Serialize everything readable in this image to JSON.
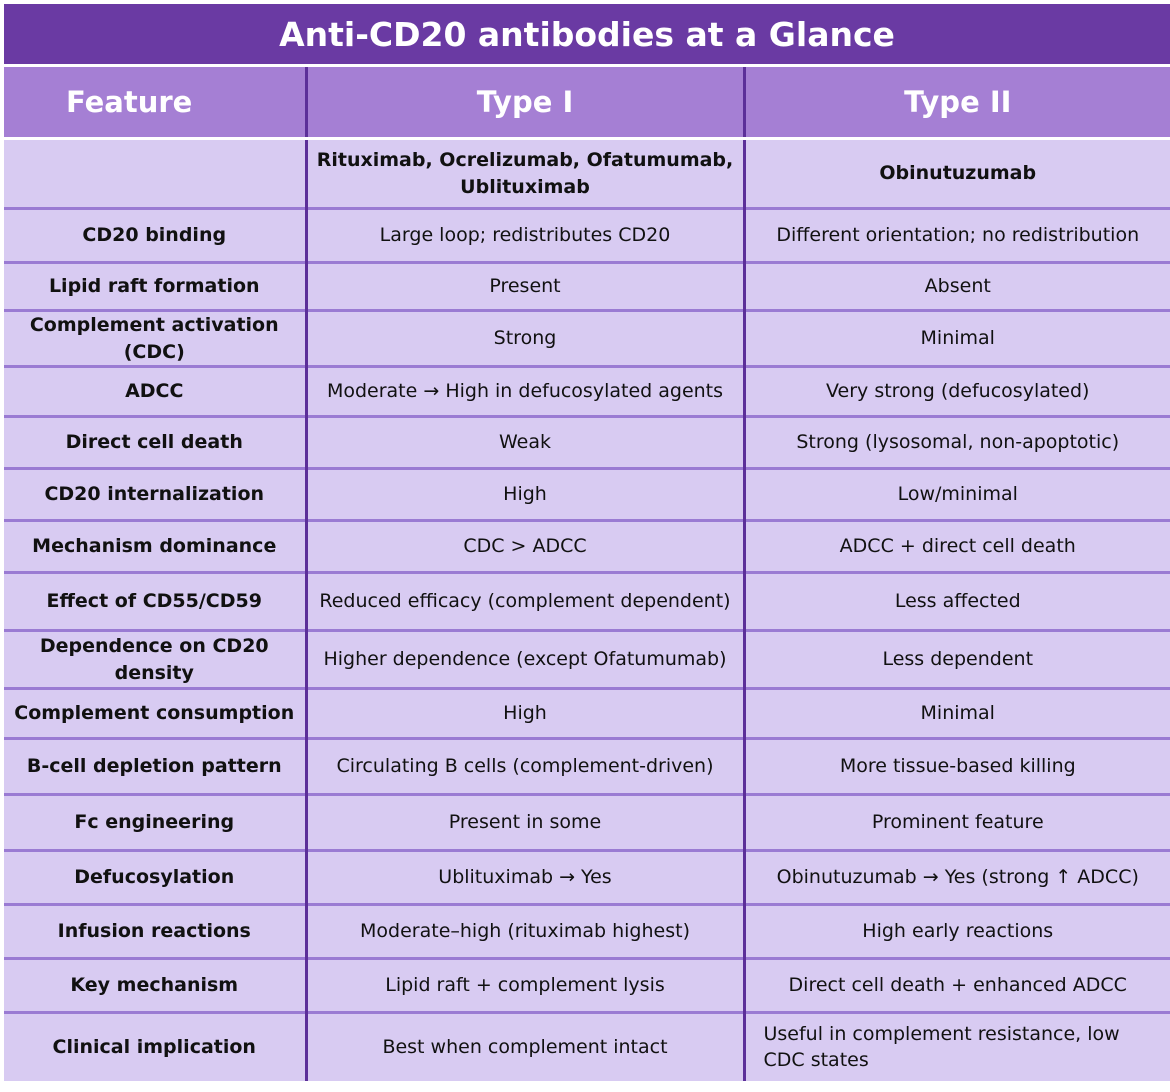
{
  "title": "Anti-CD20 antibodies at a Glance",
  "headers": [
    "Feature",
    "Type I",
    "Type  II"
  ],
  "colors": {
    "title_bg": "#6a3aa3",
    "header_bg": "#a57fd4",
    "row_bg": "#d8cbf2",
    "divider": "#5c2f99"
  },
  "rows": [
    {
      "feature": "",
      "type1": "Rituximab, Ocrelizumab, Ofatumumab, Ublituximab",
      "type2": "Obinutuzumab"
    },
    {
      "feature": "CD20 binding",
      "type1": "Large loop; redistributes CD20",
      "type2": "Different orientation; no redistribution"
    },
    {
      "feature": "Lipid raft formation",
      "type1": "Present",
      "type2": "Absent"
    },
    {
      "feature": "Complement activation (CDC)",
      "type1": "Strong",
      "type2": "Minimal"
    },
    {
      "feature": "ADCC",
      "type1": "Moderate → High in defucosylated agents",
      "type2": "Very strong (defucosylated)"
    },
    {
      "feature": "Direct cell death",
      "type1": "Weak",
      "type2": "Strong (lysosomal, non-apoptotic)"
    },
    {
      "feature": "CD20 internalization",
      "type1": "High",
      "type2": "Low/minimal"
    },
    {
      "feature": "Mechanism dominance",
      "type1": "CDC > ADCC",
      "type2": "ADCC + direct cell death"
    },
    {
      "feature": "Effect of CD55/CD59",
      "type1": "Reduced efficacy (complement dependent)",
      "type2": "Less affected"
    },
    {
      "feature": "Dependence on CD20 density",
      "type1": "Higher dependence (except Ofatumumab)",
      "type2": "Less dependent"
    },
    {
      "feature": "Complement consumption",
      "type1": "High",
      "type2": "Minimal"
    },
    {
      "feature": "B-cell depletion pattern",
      "type1": "Circulating B cells (complement-driven)",
      "type2": "More tissue-based killing"
    },
    {
      "feature": "Fc engineering",
      "type1": "Present in some",
      "type2": "Prominent feature"
    },
    {
      "feature": "Defucosylation",
      "type1": "Ublituximab → Yes",
      "type2": "Obinutuzumab → Yes (strong ↑ ADCC)"
    },
    {
      "feature": "Infusion reactions",
      "type1": "Moderate–high (rituximab highest)",
      "type2": "High early reactions"
    },
    {
      "feature": "Key mechanism",
      "type1": "Lipid raft + complement lysis",
      "type2": "Direct cell death + enhanced ADCC"
    },
    {
      "feature": "Clinical implication",
      "type1": "Best when complement intact",
      "type2": "Useful in complement resistance, low CDC states"
    }
  ]
}
